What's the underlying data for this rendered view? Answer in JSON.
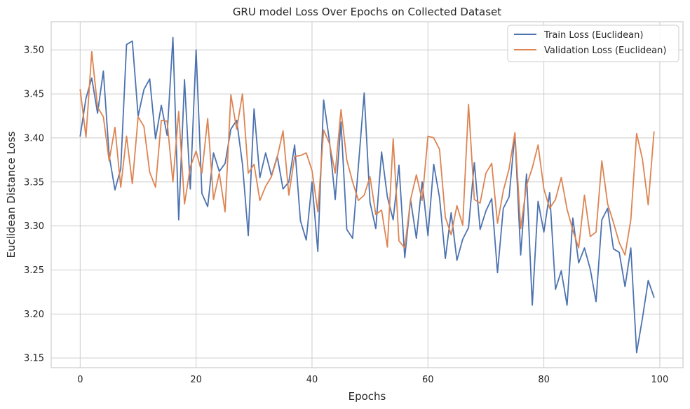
{
  "chart_data": {
    "type": "line",
    "title": "GRU model Loss Over Epochs on Collected Dataset",
    "xlabel": "Epochs",
    "ylabel": "Euclidean Distance Loss",
    "xlim": [
      -5,
      104
    ],
    "ylim": [
      3.139,
      3.532
    ],
    "xticks": [
      0,
      20,
      40,
      60,
      80,
      100
    ],
    "yticks": [
      3.15,
      3.2,
      3.25,
      3.3,
      3.35,
      3.4,
      3.45,
      3.5
    ],
    "xtick_labels": [
      "0",
      "20",
      "40",
      "60",
      "80",
      "100"
    ],
    "ytick_labels": [
      "3.15",
      "3.20",
      "3.25",
      "3.30",
      "3.35",
      "3.40",
      "3.45",
      "3.50"
    ],
    "grid": true,
    "legend": "top-right",
    "series": [
      {
        "name": "Train Loss (Euclidean)",
        "color": "#4c72b0",
        "x": [
          0,
          1,
          2,
          3,
          4,
          5,
          6,
          7,
          8,
          9,
          10,
          11,
          12,
          13,
          14,
          15,
          16,
          17,
          18,
          19,
          20,
          21,
          22,
          23,
          24,
          25,
          26,
          27,
          28,
          29,
          30,
          31,
          32,
          33,
          34,
          35,
          36,
          37,
          38,
          39,
          40,
          41,
          42,
          43,
          44,
          45,
          46,
          47,
          48,
          49,
          50,
          51,
          52,
          53,
          54,
          55,
          56,
          57,
          58,
          59,
          60,
          61,
          62,
          63,
          64,
          65,
          66,
          67,
          68,
          69,
          70,
          71,
          72,
          73,
          74,
          75,
          76,
          77,
          78,
          79,
          80,
          81,
          82,
          83,
          84,
          85,
          86,
          87,
          88,
          89,
          90,
          91,
          92,
          93,
          94,
          95,
          96,
          97,
          98,
          99
        ],
        "values": [
          3.402,
          3.445,
          3.468,
          3.428,
          3.476,
          3.38,
          3.341,
          3.365,
          3.506,
          3.51,
          3.425,
          3.455,
          3.467,
          3.399,
          3.437,
          3.403,
          3.514,
          3.307,
          3.466,
          3.342,
          3.5,
          3.337,
          3.322,
          3.383,
          3.362,
          3.371,
          3.41,
          3.42,
          3.37,
          3.289,
          3.433,
          3.355,
          3.383,
          3.357,
          3.379,
          3.342,
          3.35,
          3.392,
          3.306,
          3.284,
          3.35,
          3.271,
          3.443,
          3.397,
          3.33,
          3.418,
          3.296,
          3.286,
          3.368,
          3.451,
          3.327,
          3.297,
          3.384,
          3.333,
          3.307,
          3.369,
          3.264,
          3.33,
          3.286,
          3.35,
          3.289,
          3.37,
          3.332,
          3.263,
          3.315,
          3.261,
          3.285,
          3.298,
          3.372,
          3.296,
          3.317,
          3.331,
          3.247,
          3.32,
          3.333,
          3.405,
          3.267,
          3.359,
          3.21,
          3.328,
          3.293,
          3.338,
          3.228,
          3.249,
          3.21,
          3.309,
          3.258,
          3.275,
          3.251,
          3.214,
          3.307,
          3.32,
          3.274,
          3.27,
          3.231,
          3.275,
          3.156,
          3.195,
          3.238,
          3.219
        ]
      },
      {
        "name": "Validation Loss (Euclidean)",
        "color": "#dd8452",
        "x": [
          0,
          1,
          2,
          3,
          4,
          5,
          6,
          7,
          8,
          9,
          10,
          11,
          12,
          13,
          14,
          15,
          16,
          17,
          18,
          19,
          20,
          21,
          22,
          23,
          24,
          25,
          26,
          27,
          28,
          29,
          30,
          31,
          32,
          33,
          34,
          35,
          36,
          37,
          38,
          39,
          40,
          41,
          42,
          43,
          44,
          45,
          46,
          47,
          48,
          49,
          50,
          51,
          52,
          53,
          54,
          55,
          56,
          57,
          58,
          59,
          60,
          61,
          62,
          63,
          64,
          65,
          66,
          67,
          68,
          69,
          70,
          71,
          72,
          73,
          74,
          75,
          76,
          77,
          78,
          79,
          80,
          81,
          82,
          83,
          84,
          85,
          86,
          87,
          88,
          89,
          90,
          91,
          92,
          93,
          94,
          95,
          96,
          97,
          98,
          99
        ],
        "values": [
          3.455,
          3.401,
          3.498,
          3.435,
          3.424,
          3.374,
          3.412,
          3.344,
          3.402,
          3.348,
          3.424,
          3.413,
          3.361,
          3.344,
          3.42,
          3.419,
          3.35,
          3.43,
          3.325,
          3.367,
          3.385,
          3.36,
          3.422,
          3.33,
          3.36,
          3.316,
          3.449,
          3.41,
          3.45,
          3.36,
          3.37,
          3.329,
          3.345,
          3.356,
          3.378,
          3.408,
          3.335,
          3.379,
          3.38,
          3.383,
          3.363,
          3.316,
          3.409,
          3.394,
          3.36,
          3.432,
          3.375,
          3.35,
          3.329,
          3.335,
          3.356,
          3.313,
          3.318,
          3.276,
          3.399,
          3.283,
          3.275,
          3.33,
          3.358,
          3.329,
          3.402,
          3.4,
          3.387,
          3.31,
          3.29,
          3.323,
          3.301,
          3.438,
          3.33,
          3.326,
          3.36,
          3.371,
          3.303,
          3.34,
          3.365,
          3.406,
          3.297,
          3.346,
          3.366,
          3.392,
          3.342,
          3.32,
          3.33,
          3.355,
          3.319,
          3.295,
          3.275,
          3.335,
          3.288,
          3.293,
          3.374,
          3.325,
          3.304,
          3.281,
          3.267,
          3.307,
          3.405,
          3.376,
          3.324,
          3.407
        ]
      }
    ]
  }
}
